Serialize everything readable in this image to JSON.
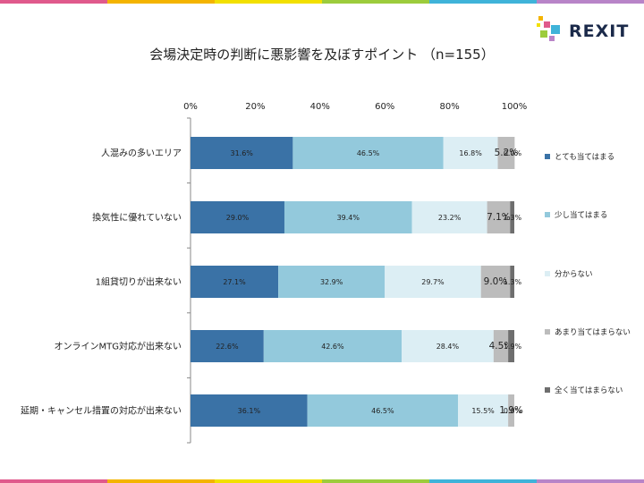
{
  "brand": {
    "name": "REXIT",
    "stripe_colors": [
      "#e05a8c",
      "#f4b400",
      "#f2e000",
      "#9ccc3c",
      "#3fb3d9",
      "#b884c8"
    ]
  },
  "chart_data": {
    "type": "bar",
    "orientation": "horizontal-stacked-100",
    "title": "会場決定時の判断に悪影響を及ぼすポイント （n=155）",
    "xlim": [
      0,
      100
    ],
    "ticks": [
      "0%",
      "20%",
      "40%",
      "60%",
      "80%",
      "100%"
    ],
    "tick_values": [
      0,
      20,
      40,
      60,
      80,
      100
    ],
    "legend_position": "right",
    "categories": [
      "人混みの多いエリア",
      "換気性に優れていない",
      "1組貸切りが出来ない",
      "オンラインMTG対応が出来ない",
      "延期・キャンセル措置の対応が出来ない"
    ],
    "series": [
      {
        "name": "とても当てはまる",
        "color": "#3a72a6",
        "values": [
          31.6,
          29.0,
          27.1,
          22.6,
          36.1
        ]
      },
      {
        "name": "少し当てはまる",
        "color": "#93c9dc",
        "values": [
          46.5,
          39.4,
          32.9,
          42.6,
          46.5
        ]
      },
      {
        "name": "分からない",
        "color": "#dceef4",
        "values": [
          16.8,
          23.2,
          29.7,
          28.4,
          15.5
        ]
      },
      {
        "name": "あまり当てはまらない",
        "color": "#bcbcbc",
        "values": [
          5.2,
          7.1,
          9.0,
          4.5,
          1.9
        ]
      },
      {
        "name": "全く当てはまらない",
        "color": "#6e6e6e",
        "values": [
          0.0,
          1.3,
          1.3,
          1.9,
          0.0
        ]
      }
    ],
    "value_labels": [
      [
        "31.6%",
        "46.5%",
        "16.8%",
        "5.2%",
        "0.0%"
      ],
      [
        "29.0%",
        "39.4%",
        "23.2%",
        "7.1%",
        "1.3%"
      ],
      [
        "27.1%",
        "32.9%",
        "29.7%",
        "9.0%",
        "1.3%"
      ],
      [
        "22.6%",
        "42.6%",
        "28.4%",
        "4.5%",
        "1.9%"
      ],
      [
        "36.1%",
        "46.5%",
        "15.5%",
        "1.9%",
        "0.0%"
      ]
    ]
  }
}
